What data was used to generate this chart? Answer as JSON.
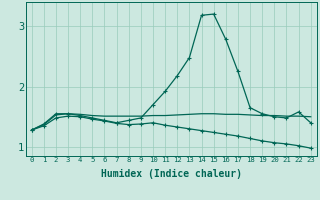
{
  "xlabel": "Humidex (Indice chaleur)",
  "xlim": [
    -0.5,
    23.5
  ],
  "ylim": [
    0.85,
    3.4
  ],
  "yticks": [
    1,
    2,
    3
  ],
  "xticks": [
    0,
    1,
    2,
    3,
    4,
    5,
    6,
    7,
    8,
    9,
    10,
    11,
    12,
    13,
    14,
    15,
    16,
    17,
    18,
    19,
    20,
    21,
    22,
    23
  ],
  "bg_color": "#cce8e0",
  "grid_color": "#99ccbb",
  "line_color": "#006655",
  "line1_x": [
    0,
    1,
    2,
    3,
    4,
    5,
    6,
    7,
    8,
    9,
    10,
    11,
    12,
    13,
    14,
    15,
    16,
    17,
    18,
    19,
    20,
    21,
    22,
    23
  ],
  "line1_y": [
    1.28,
    1.38,
    1.55,
    1.55,
    1.52,
    1.48,
    1.44,
    1.4,
    1.44,
    1.48,
    1.7,
    1.92,
    2.18,
    2.48,
    3.18,
    3.2,
    2.78,
    2.25,
    1.65,
    1.55,
    1.5,
    1.48,
    1.58,
    1.4
  ],
  "line2_x": [
    0,
    1,
    2,
    3,
    4,
    5,
    6,
    7,
    8,
    9,
    10,
    11,
    12,
    13,
    14,
    15,
    16,
    17,
    18,
    19,
    20,
    21,
    22,
    23
  ],
  "line2_y": [
    1.28,
    1.37,
    1.53,
    1.55,
    1.54,
    1.52,
    1.51,
    1.51,
    1.51,
    1.51,
    1.52,
    1.52,
    1.53,
    1.54,
    1.55,
    1.55,
    1.54,
    1.54,
    1.53,
    1.52,
    1.52,
    1.51,
    1.51,
    1.5
  ],
  "line3_x": [
    0,
    1,
    2,
    3,
    4,
    5,
    6,
    7,
    8,
    9,
    10,
    11,
    12,
    13,
    14,
    15,
    16,
    17,
    18,
    19,
    20,
    21,
    22,
    23
  ],
  "line3_y": [
    1.28,
    1.35,
    1.48,
    1.51,
    1.5,
    1.46,
    1.43,
    1.39,
    1.37,
    1.38,
    1.4,
    1.36,
    1.33,
    1.3,
    1.27,
    1.24,
    1.21,
    1.18,
    1.14,
    1.1,
    1.07,
    1.05,
    1.02,
    0.98
  ]
}
